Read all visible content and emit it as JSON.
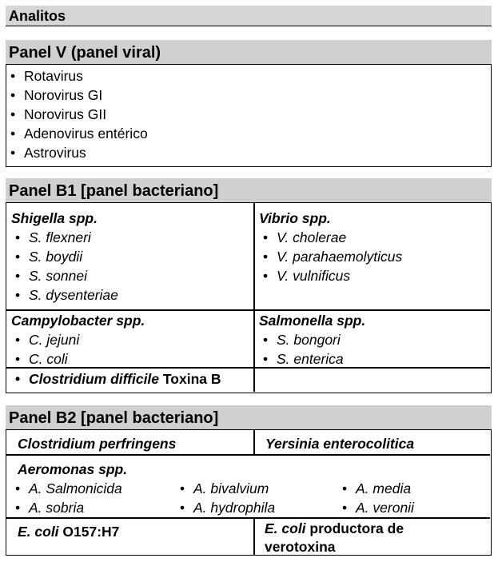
{
  "header": {
    "title": "Analitos"
  },
  "panel_v": {
    "title": "Panel V (panel viral)",
    "items": [
      "Rotavirus",
      "Norovirus GI",
      "Norovirus GII",
      "Adenovirus entérico",
      "Astrovirus"
    ]
  },
  "panel_b1": {
    "title": "Panel B1 [panel bacteriano]",
    "shigella": {
      "heading": "Shigella spp.",
      "items": [
        "S. flexneri",
        "S. boydii",
        "S. sonnei",
        "S. dysenteriae"
      ]
    },
    "vibrio": {
      "heading": "Vibrio spp.",
      "items": [
        "V. cholerae",
        "V. parahaemolyticus",
        "V. vulnificus"
      ]
    },
    "campylobacter": {
      "heading": "Campylobacter spp.",
      "items": [
        "C. jejuni",
        "C. coli"
      ]
    },
    "salmonella": {
      "heading": "Salmonella spp.",
      "items": [
        "S. bongori",
        "S. enterica"
      ]
    },
    "clostridium": {
      "name": "Clostridium difficile",
      "suffix": " Toxina B"
    }
  },
  "panel_b2": {
    "title": "Panel B2 [panel bacteriano]",
    "row1_left": "Clostridium perfringens",
    "row1_right": "Yersinia enterocolitica",
    "aeromonas": {
      "heading": "Aeromonas spp.",
      "col1": [
        "A. Salmonicida",
        "A. sobria"
      ],
      "col2": [
        "A. bivalvium",
        "A. hydrophila"
      ],
      "col3": [
        "A. media",
        "A. veronii"
      ]
    },
    "ecoli_left": {
      "name": "E. coli",
      "suffix": " O157:H7"
    },
    "ecoli_right": {
      "name": "E. coli",
      "suffix_line1": " productora de",
      "line2": "verotoxina"
    }
  }
}
